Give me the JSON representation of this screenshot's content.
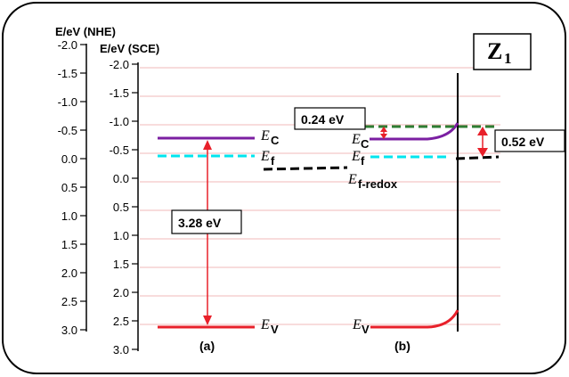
{
  "title": "Z",
  "title_sub": "1",
  "axis_nhe": {
    "label": "E/eV (NHE)",
    "ticks": [
      "-2.0",
      "-1.5",
      "-1.0",
      "-0.5",
      "0.0",
      "0.5",
      "1.0",
      "1.5",
      "2.0",
      "2.5",
      "3.0"
    ]
  },
  "axis_sce": {
    "label": "E/eV (SCE)",
    "ticks": [
      "-2.0",
      "-1.5",
      "-1.0",
      "-0.5",
      "0.0",
      "0.5",
      "1.0",
      "1.5",
      "2.0",
      "2.5",
      "3.0"
    ]
  },
  "panel_a": {
    "caption": "(a)",
    "gap_label": "3.28 eV",
    "ec": "E",
    "ec_sub": "C",
    "ef": "E",
    "ef_sub": "f",
    "ev": "E",
    "ev_sub": "V",
    "efr": "E",
    "efr_sub": "f-redox"
  },
  "panel_b": {
    "caption": "(b)",
    "bend_label": "0.24 eV",
    "offset_label": "0.52 eV",
    "ec": "E",
    "ec_sub": "C",
    "ef": "E",
    "ef_sub": "f",
    "ev": "E",
    "ev_sub": "V"
  },
  "colors": {
    "conduction": "#7b1fa2",
    "fermi": "#00e5ee",
    "redox": "#000000",
    "valence": "#e8202a",
    "bend": "#2e7d32",
    "gridline": "#f0b8b8",
    "arrow": "#e8202a"
  }
}
